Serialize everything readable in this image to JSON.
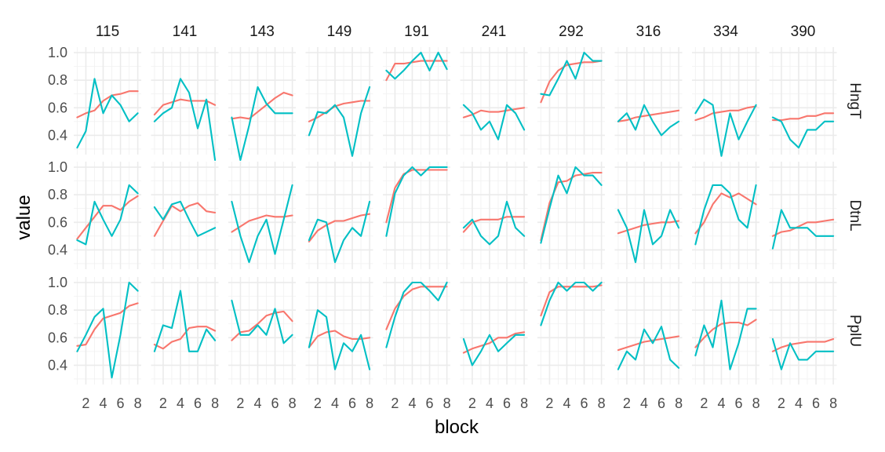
{
  "chart_data": {
    "type": "line",
    "xlabel": "block",
    "ylabel": "value",
    "xlim": [
      0.6,
      8.4
    ],
    "ylim": [
      0.26,
      1.04
    ],
    "x_ticks": [
      2,
      4,
      6,
      8
    ],
    "y_ticks": [
      0.4,
      0.6,
      0.8,
      1.0
    ],
    "y_tick_labels": [
      "0.4",
      "0.6",
      "0.8",
      "1.0"
    ],
    "col_facets": [
      "115",
      "141",
      "143",
      "149",
      "191",
      "241",
      "292",
      "316",
      "334",
      "390"
    ],
    "row_facets": [
      "HngT",
      "DtnL",
      "PplU"
    ],
    "x": [
      1,
      2,
      3,
      4,
      5,
      6,
      7,
      8
    ],
    "colors": [
      "#F8766D",
      "#00BFC4"
    ],
    "legend": "none",
    "grid": true,
    "panels": [
      [
        {
          "series": [
            [
              0.53,
              0.56,
              0.58,
              0.65,
              0.69,
              0.7,
              0.72,
              0.72
            ],
            [
              0.31,
              0.43,
              0.81,
              0.56,
              0.69,
              0.62,
              0.5,
              0.56
            ]
          ]
        },
        {
          "series": [
            [
              0.55,
              0.62,
              0.64,
              0.66,
              0.65,
              0.65,
              0.65,
              0.62
            ],
            [
              0.5,
              0.56,
              0.6,
              0.81,
              0.71,
              0.45,
              0.66,
              0.22
            ]
          ]
        },
        {
          "series": [
            [
              0.52,
              0.53,
              0.52,
              0.57,
              0.62,
              0.67,
              0.71,
              0.69
            ],
            [
              0.53,
              0.22,
              0.47,
              0.75,
              0.63,
              0.56,
              0.56,
              0.56
            ]
          ]
        },
        {
          "series": [
            [
              0.5,
              0.53,
              0.57,
              0.61,
              0.63,
              0.64,
              0.65,
              0.65
            ],
            [
              0.4,
              0.57,
              0.56,
              0.62,
              0.53,
              0.25,
              0.56,
              0.75
            ]
          ]
        },
        {
          "series": [
            [
              0.8,
              0.92,
              0.92,
              0.93,
              0.94,
              0.94,
              0.94,
              0.94
            ],
            [
              0.87,
              0.81,
              0.87,
              0.94,
              1.0,
              0.87,
              1.0,
              0.88
            ]
          ]
        },
        {
          "series": [
            [
              0.53,
              0.55,
              0.58,
              0.57,
              0.57,
              0.58,
              0.59,
              0.6
            ],
            [
              0.62,
              0.56,
              0.44,
              0.5,
              0.37,
              0.62,
              0.56,
              0.44
            ]
          ]
        },
        {
          "series": [
            [
              0.64,
              0.79,
              0.87,
              0.91,
              0.92,
              0.93,
              0.93,
              0.94
            ],
            [
              0.7,
              0.69,
              0.81,
              0.94,
              0.81,
              1.0,
              0.94,
              0.94
            ]
          ]
        },
        {
          "series": [
            [
              0.5,
              0.51,
              0.53,
              0.54,
              0.55,
              0.56,
              0.57,
              0.58
            ],
            [
              0.5,
              0.56,
              0.44,
              0.62,
              0.5,
              0.4,
              0.46,
              0.5
            ]
          ]
        },
        {
          "series": [
            [
              0.51,
              0.53,
              0.56,
              0.57,
              0.58,
              0.58,
              0.6,
              0.61
            ],
            [
              0.56,
              0.66,
              0.62,
              0.25,
              0.56,
              0.37,
              0.5,
              0.62
            ]
          ]
        },
        {
          "series": [
            [
              0.51,
              0.51,
              0.52,
              0.52,
              0.54,
              0.54,
              0.56,
              0.56
            ],
            [
              0.53,
              0.5,
              0.37,
              0.31,
              0.44,
              0.44,
              0.5,
              0.5
            ]
          ]
        }
      ],
      [
        {
          "series": [
            [
              0.48,
              0.56,
              0.64,
              0.72,
              0.72,
              0.69,
              0.75,
              0.79
            ],
            [
              0.47,
              0.44,
              0.75,
              0.62,
              0.5,
              0.62,
              0.87,
              0.81
            ]
          ]
        },
        {
          "series": [
            [
              0.5,
              0.61,
              0.72,
              0.68,
              0.72,
              0.74,
              0.68,
              0.67
            ],
            [
              0.71,
              0.62,
              0.73,
              0.75,
              0.62,
              0.5,
              0.53,
              0.56
            ]
          ]
        },
        {
          "series": [
            [
              0.53,
              0.57,
              0.61,
              0.63,
              0.65,
              0.64,
              0.64,
              0.65
            ],
            [
              0.75,
              0.5,
              0.31,
              0.5,
              0.62,
              0.37,
              0.62,
              0.87
            ]
          ]
        },
        {
          "series": [
            [
              0.46,
              0.54,
              0.58,
              0.61,
              0.61,
              0.63,
              0.65,
              0.66
            ],
            [
              0.47,
              0.62,
              0.6,
              0.31,
              0.47,
              0.56,
              0.5,
              0.75
            ]
          ]
        },
        {
          "series": [
            [
              0.6,
              0.85,
              0.95,
              0.98,
              0.98,
              0.98,
              0.98,
              0.98
            ],
            [
              0.5,
              0.81,
              0.94,
              1.0,
              0.94,
              1.0,
              1.0,
              1.0
            ]
          ]
        },
        {
          "series": [
            [
              0.53,
              0.6,
              0.62,
              0.62,
              0.62,
              0.64,
              0.64,
              0.64
            ],
            [
              0.56,
              0.62,
              0.5,
              0.44,
              0.5,
              0.75,
              0.56,
              0.5
            ]
          ]
        },
        {
          "series": [
            [
              0.47,
              0.74,
              0.89,
              0.9,
              0.94,
              0.95,
              0.96,
              0.96
            ],
            [
              0.45,
              0.7,
              0.94,
              0.81,
              1.0,
              0.94,
              0.94,
              0.87
            ]
          ]
        },
        {
          "series": [
            [
              0.52,
              0.54,
              0.56,
              0.58,
              0.59,
              0.6,
              0.6,
              0.61
            ],
            [
              0.69,
              0.56,
              0.31,
              0.69,
              0.44,
              0.5,
              0.69,
              0.56
            ]
          ]
        },
        {
          "series": [
            [
              0.52,
              0.6,
              0.73,
              0.81,
              0.78,
              0.81,
              0.77,
              0.73
            ],
            [
              0.44,
              0.69,
              0.87,
              0.87,
              0.81,
              0.62,
              0.56,
              0.87
            ]
          ]
        },
        {
          "series": [
            [
              0.5,
              0.53,
              0.54,
              0.57,
              0.6,
              0.6,
              0.61,
              0.62
            ],
            [
              0.41,
              0.69,
              0.56,
              0.56,
              0.56,
              0.5,
              0.5,
              0.5
            ]
          ]
        }
      ],
      [
        {
          "series": [
            [
              0.54,
              0.55,
              0.66,
              0.74,
              0.76,
              0.78,
              0.83,
              0.85
            ],
            [
              0.5,
              0.62,
              0.75,
              0.81,
              0.31,
              0.62,
              1.0,
              0.94
            ]
          ]
        },
        {
          "series": [
            [
              0.55,
              0.52,
              0.57,
              0.59,
              0.67,
              0.68,
              0.68,
              0.65
            ],
            [
              0.5,
              0.69,
              0.67,
              0.94,
              0.5,
              0.5,
              0.66,
              0.58
            ]
          ]
        },
        {
          "series": [
            [
              0.58,
              0.64,
              0.65,
              0.7,
              0.76,
              0.78,
              0.79,
              0.72
            ],
            [
              0.87,
              0.62,
              0.62,
              0.69,
              0.62,
              0.81,
              0.56,
              0.62
            ]
          ]
        },
        {
          "series": [
            [
              0.53,
              0.61,
              0.64,
              0.65,
              0.61,
              0.59,
              0.59,
              0.6
            ],
            [
              0.53,
              0.8,
              0.75,
              0.37,
              0.56,
              0.5,
              0.62,
              0.37
            ]
          ]
        },
        {
          "series": [
            [
              0.66,
              0.81,
              0.9,
              0.95,
              0.97,
              0.97,
              0.97,
              0.97
            ],
            [
              0.53,
              0.75,
              0.93,
              1.0,
              1.0,
              0.94,
              0.87,
              1.0
            ]
          ]
        },
        {
          "series": [
            [
              0.49,
              0.52,
              0.54,
              0.56,
              0.6,
              0.6,
              0.63,
              0.64
            ],
            [
              0.59,
              0.4,
              0.5,
              0.62,
              0.5,
              0.56,
              0.62,
              0.62
            ]
          ]
        },
        {
          "series": [
            [
              0.76,
              0.93,
              0.97,
              0.97,
              0.97,
              0.97,
              0.97,
              0.98
            ],
            [
              0.69,
              0.87,
              1.0,
              0.94,
              1.0,
              1.0,
              0.94,
              1.0
            ]
          ]
        },
        {
          "series": [
            [
              0.51,
              0.53,
              0.55,
              0.57,
              0.58,
              0.59,
              0.6,
              0.61
            ],
            [
              0.37,
              0.5,
              0.44,
              0.66,
              0.56,
              0.68,
              0.44,
              0.38
            ]
          ]
        },
        {
          "series": [
            [
              0.53,
              0.6,
              0.66,
              0.7,
              0.71,
              0.71,
              0.69,
              0.73
            ],
            [
              0.47,
              0.69,
              0.53,
              0.87,
              0.37,
              0.56,
              0.81,
              0.81
            ]
          ]
        },
        {
          "series": [
            [
              0.5,
              0.53,
              0.55,
              0.56,
              0.57,
              0.57,
              0.57,
              0.59
            ],
            [
              0.59,
              0.37,
              0.56,
              0.44,
              0.44,
              0.5,
              0.5,
              0.5
            ]
          ]
        }
      ]
    ]
  }
}
